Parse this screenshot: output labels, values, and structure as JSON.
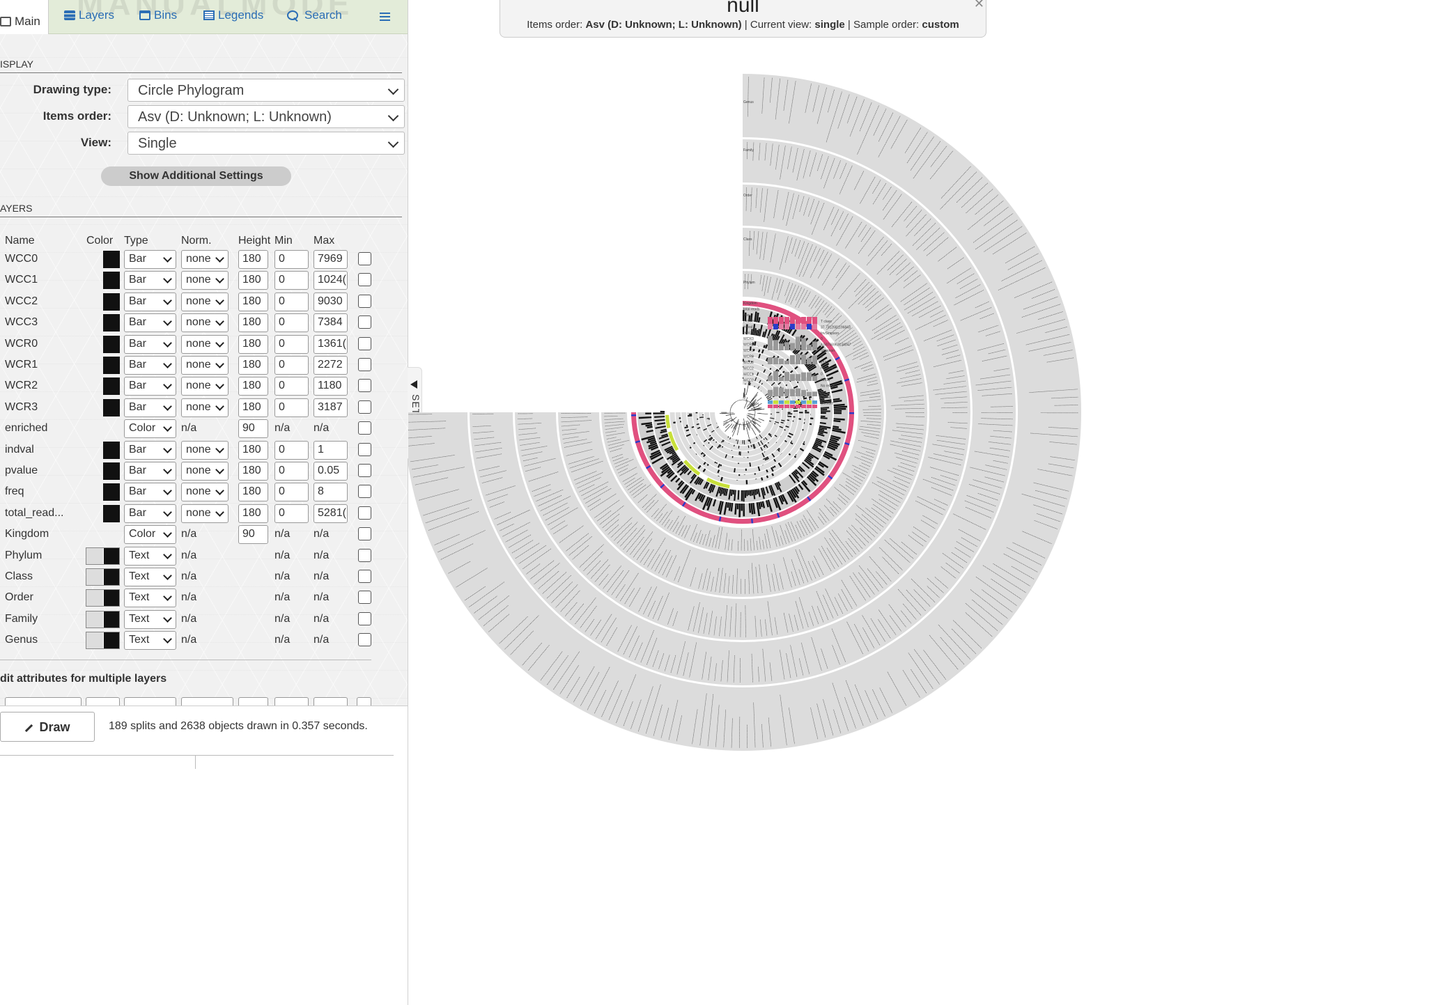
{
  "tabs": [
    {
      "label": "Main",
      "icon": "main-icon"
    },
    {
      "label": "Layers",
      "icon": "layers-icon"
    },
    {
      "label": "Bins",
      "icon": "bins-icon"
    },
    {
      "label": "Legends",
      "icon": "legends-icon"
    },
    {
      "label": "Search",
      "icon": "search-icon"
    }
  ],
  "watermark": "MANUALMODE",
  "display": {
    "section_title": "ISPLAY",
    "drawing_type_label": "Drawing type:",
    "drawing_type_value": "Circle Phylogram",
    "items_order_label": "Items order:",
    "items_order_value": "Asv (D: Unknown; L: Unknown)",
    "view_label": "View:",
    "view_value": "Single",
    "show_additional": "Show Additional Settings"
  },
  "layers": {
    "section_title": "AYERS",
    "headers": {
      "name": "Name",
      "color": "Color",
      "type": "Type",
      "norm": "Norm.",
      "height": "Height",
      "min": "Min",
      "max": "Max"
    },
    "rows": [
      {
        "name": "WCC0",
        "swatch": "solid",
        "type": "Bar",
        "norm": "none",
        "height": "180",
        "min": "0",
        "max": "7969"
      },
      {
        "name": "WCC1",
        "swatch": "solid",
        "type": "Bar",
        "norm": "none",
        "height": "180",
        "min": "0",
        "max": "1024("
      },
      {
        "name": "WCC2",
        "swatch": "solid",
        "type": "Bar",
        "norm": "none",
        "height": "180",
        "min": "0",
        "max": "9030"
      },
      {
        "name": "WCC3",
        "swatch": "solid",
        "type": "Bar",
        "norm": "none",
        "height": "180",
        "min": "0",
        "max": "7384"
      },
      {
        "name": "WCR0",
        "swatch": "solid",
        "type": "Bar",
        "norm": "none",
        "height": "180",
        "min": "0",
        "max": "1361("
      },
      {
        "name": "WCR1",
        "swatch": "solid",
        "type": "Bar",
        "norm": "none",
        "height": "180",
        "min": "0",
        "max": "2272"
      },
      {
        "name": "WCR2",
        "swatch": "solid",
        "type": "Bar",
        "norm": "none",
        "height": "180",
        "min": "0",
        "max": "1180"
      },
      {
        "name": "WCR3",
        "swatch": "solid",
        "type": "Bar",
        "norm": "none",
        "height": "180",
        "min": "0",
        "max": "3187"
      },
      {
        "name": "enriched",
        "swatch": "none",
        "type": "Color",
        "norm": "n/a",
        "height": "90",
        "min": "n/a",
        "max": "n/a"
      },
      {
        "name": "indval",
        "swatch": "solid",
        "type": "Bar",
        "norm": "none",
        "height": "180",
        "min": "0",
        "max": "1"
      },
      {
        "name": "pvalue",
        "swatch": "solid",
        "type": "Bar",
        "norm": "none",
        "height": "180",
        "min": "0",
        "max": "0.05"
      },
      {
        "name": "freq",
        "swatch": "solid",
        "type": "Bar",
        "norm": "none",
        "height": "180",
        "min": "0",
        "max": "8"
      },
      {
        "name": "total_read...",
        "swatch": "solid",
        "type": "Bar",
        "norm": "none",
        "height": "180",
        "min": "0",
        "max": "5281("
      },
      {
        "name": "Kingdom",
        "swatch": "none",
        "type": "Color",
        "norm": "n/a",
        "height": "90",
        "min": "n/a",
        "max": "n/a"
      },
      {
        "name": "Phylum",
        "swatch": "pair",
        "type": "Text",
        "norm": "n/a",
        "height": "",
        "min": "n/a",
        "max": "n/a"
      },
      {
        "name": "Class",
        "swatch": "pair",
        "type": "Text",
        "norm": "n/a",
        "height": "",
        "min": "n/a",
        "max": "n/a"
      },
      {
        "name": "Order",
        "swatch": "pair",
        "type": "Text",
        "norm": "n/a",
        "height": "",
        "min": "n/a",
        "max": "n/a"
      },
      {
        "name": "Family",
        "swatch": "pair",
        "type": "Text",
        "norm": "n/a",
        "height": "",
        "min": "n/a",
        "max": "n/a"
      },
      {
        "name": "Genus",
        "swatch": "pair",
        "type": "Text",
        "norm": "n/a",
        "height": "",
        "min": "n/a",
        "max": "n/a"
      }
    ]
  },
  "multi_edit_title": "dit attributes for multiple layers",
  "draw_button": "Draw",
  "status_text": "189 splits and 2638 objects drawn in 0.357 seconds.",
  "settings_toggle": "SETTINGS",
  "info": {
    "title": "null",
    "items_order_label": "Items order:",
    "items_order_value": "Asv (D: Unknown; L: Unknown)",
    "current_view_label": "Current view:",
    "current_view_value": "single",
    "sample_order_label": "Sample order:",
    "sample_order_value": "custom"
  },
  "tree": {
    "text_ring_labels": [
      "Genus",
      "Family",
      "Order",
      "Class",
      "Phylum"
    ],
    "inner_layer_labels": [
      "Kingdom",
      "total reads",
      "freq",
      "pvalue",
      "indval",
      "enriched",
      "WCR3",
      "WCR2",
      "WCR1",
      "WCR0",
      "WCC3",
      "WCC2",
      "WCC1",
      "WCC0"
    ],
    "sample_info_labels": [
      "T class",
      "37.7312681196843",
      "InvSimpson",
      "0",
      "4.58766963134047",
      "Shannon",
      "0",
      "153",
      "No asvs",
      "0",
      "33311",
      "No reads",
      "0",
      "Period",
      "Ocellate",
      "Site"
    ],
    "colors": {
      "kingdom_ring": "#e0507f",
      "enriched": "#c8e03a",
      "bars": "#111111",
      "ring_bg": "#dddddd",
      "accent_blue": "#2a3cc9"
    }
  }
}
